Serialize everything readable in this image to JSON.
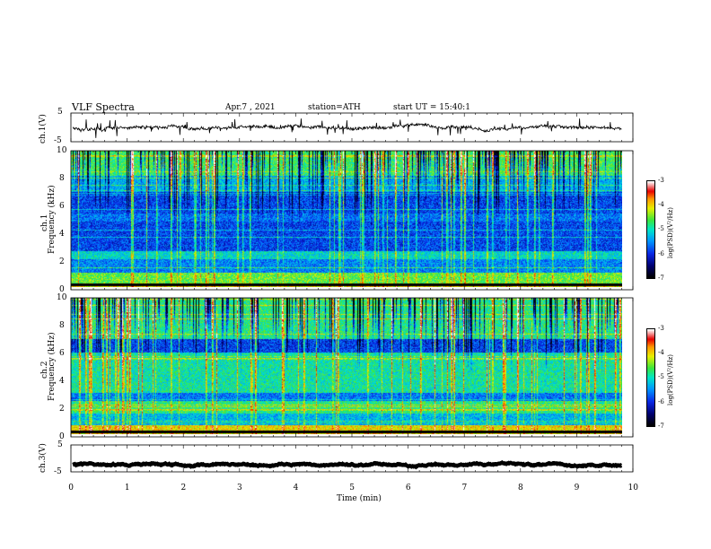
{
  "header": {
    "title": "VLF Spectra",
    "date": "Apr.7 , 2021",
    "station": "station=ATH",
    "start": "start UT = 15:40:1"
  },
  "chart_data": [
    {
      "type": "line",
      "name": "ch1-waveform",
      "ylabel": "ch.1(V)",
      "ylim": [
        -5,
        5
      ],
      "yticks": [
        "5",
        "-5"
      ],
      "note_baseline": 0
    },
    {
      "type": "heatmap",
      "name": "ch1-spectrogram",
      "ylabel": "ch.1 Frequency (kHz)",
      "ylabel_lines": [
        "ch.1",
        "Frequency (kHz)"
      ],
      "ylim": [
        0,
        10
      ],
      "yticks": [
        "0",
        "2",
        "4",
        "6",
        "8",
        "10"
      ],
      "colorbar": {
        "label": "log(PSD)(V²/Hz)",
        "ticks": [
          "-3",
          "-4",
          "-5",
          "-6",
          "-7"
        ],
        "range": [
          -7,
          -3
        ]
      }
    },
    {
      "type": "heatmap",
      "name": "ch2-spectrogram",
      "ylabel": "ch.2 Frequency (kHz)",
      "ylabel_lines": [
        "ch.2",
        "Frequency (kHz)"
      ],
      "ylim": [
        0,
        10
      ],
      "yticks": [
        "0",
        "2",
        "4",
        "6",
        "8",
        "10"
      ],
      "colorbar": {
        "label": "log(PSD)(V²/Hz)",
        "ticks": [
          "-3",
          "-4",
          "-5",
          "-6",
          "-7"
        ],
        "range": [
          -7,
          -3
        ]
      }
    },
    {
      "type": "line",
      "name": "ch3-waveform",
      "ylabel": "ch.3(V)",
      "ylim": [
        -5,
        5
      ],
      "yticks": [
        "5",
        "-5"
      ],
      "note_baseline": -2.3
    }
  ],
  "xaxis": {
    "label": "Time (min)",
    "range": [
      0,
      10
    ],
    "ticks": [
      "0",
      "1",
      "2",
      "3",
      "4",
      "5",
      "6",
      "7",
      "8",
      "9",
      "10"
    ],
    "data_end": 9.8
  },
  "colorbar_label_text": "log(PSD)(V",
  "colorbar_label_sup": "2",
  "colorbar_label_tail": "/Hz)"
}
